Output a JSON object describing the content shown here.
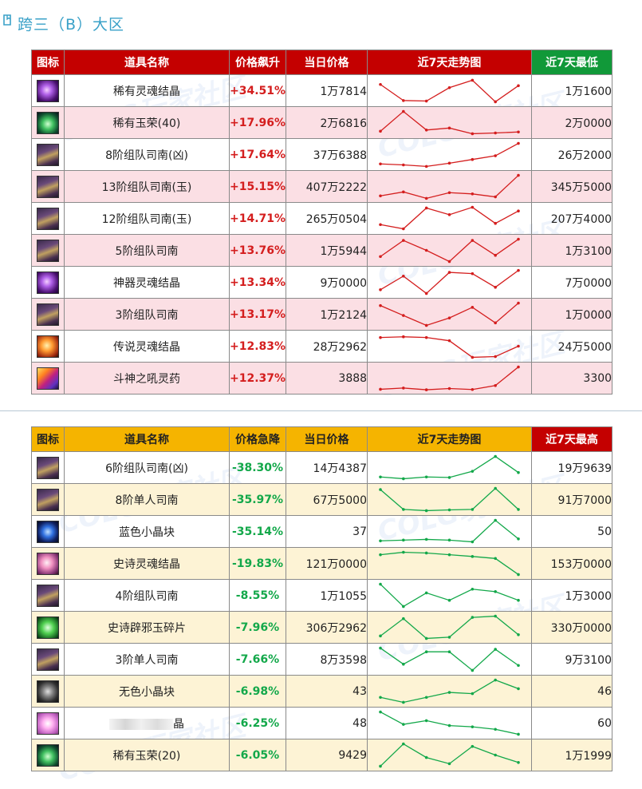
{
  "page_title": "跨三（B）大区",
  "watermark": "COLG玩家社区",
  "colors": {
    "rise_header": "#c40000",
    "rise_value": "#d41e1e",
    "fall_header": "#f5b400",
    "fall_value": "#13a84a",
    "low_header": "#119939",
    "high_header": "#c40000"
  },
  "rise_table": {
    "headers": {
      "icon": "图标",
      "name": "道具名称",
      "change": "价格飙升",
      "price": "当日价格",
      "trend": "近7天走势图",
      "extreme": "近7天最低"
    },
    "rows": [
      {
        "icon": "purple-orb-icon",
        "name": "稀有灵魂结晶",
        "change": "+34.51%",
        "price": "1万7814",
        "extreme": "1万1600",
        "trend": [
          0.75,
          0.1,
          0.08,
          0.62,
          0.92,
          0.05,
          0.7
        ]
      },
      {
        "icon": "green-gem-icon",
        "name": "稀有玉荣(40)",
        "change": "+17.96%",
        "price": "2万6816",
        "extreme": "2万0000",
        "trend": [
          0.15,
          0.95,
          0.2,
          0.28,
          0.05,
          0.08,
          0.12
        ]
      },
      {
        "icon": "scroll-compass-icon",
        "name": "8阶组队司南(凶)",
        "change": "+17.64%",
        "price": "37万6388",
        "extreme": "26万2000",
        "trend": [
          0.12,
          0.08,
          0.02,
          0.15,
          0.3,
          0.45,
          0.95
        ]
      },
      {
        "icon": "scroll-compass-icon",
        "name": "13阶组队司南(玉)",
        "change": "+15.15%",
        "price": "407万2222",
        "extreme": "345万5000",
        "trend": [
          0.12,
          0.28,
          0.02,
          0.25,
          0.2,
          0.08,
          0.95
        ]
      },
      {
        "icon": "scroll-compass-icon",
        "name": "12阶组队司南(玉)",
        "change": "+14.71%",
        "price": "265万0504",
        "extreme": "207万4000",
        "trend": [
          0.25,
          0.08,
          0.92,
          0.65,
          0.95,
          0.3,
          0.8
        ]
      },
      {
        "icon": "scroll-compass-icon",
        "name": "5阶组队司南",
        "change": "+13.76%",
        "price": "1万5944",
        "extreme": "1万3100",
        "trend": [
          0.25,
          0.9,
          0.5,
          0.05,
          0.9,
          0.3,
          0.95
        ]
      },
      {
        "icon": "purple-orb-icon",
        "name": "神器灵魂结晶",
        "change": "+13.34%",
        "price": "9万0000",
        "extreme": "7万0000",
        "trend": [
          0.2,
          0.75,
          0.05,
          0.9,
          0.85,
          0.3,
          0.98
        ]
      },
      {
        "icon": "scroll-compass-icon",
        "name": "3阶组队司南",
        "change": "+13.17%",
        "price": "1万2124",
        "extreme": "1万0000",
        "trend": [
          0.85,
          0.45,
          0.05,
          0.35,
          0.78,
          0.15,
          0.95
        ]
      },
      {
        "icon": "orange-orb-icon",
        "name": "传说灵魂结晶",
        "change": "+12.83%",
        "price": "28万2962",
        "extreme": "24万5000",
        "trend": [
          0.85,
          0.88,
          0.85,
          0.72,
          0.05,
          0.08,
          0.5
        ]
      },
      {
        "icon": "potion-icon",
        "name": "斗神之吼灵药",
        "change": "+12.37%",
        "price": "3888",
        "extreme": "3300",
        "trend": [
          0.05,
          0.1,
          0.03,
          0.08,
          0.04,
          0.2,
          0.95
        ]
      }
    ]
  },
  "fall_table": {
    "headers": {
      "icon": "图标",
      "name": "道具名称",
      "change": "价格急降",
      "price": "当日价格",
      "trend": "近7天走势图",
      "extreme": "近7天最高"
    },
    "rows": [
      {
        "icon": "scroll-compass-icon",
        "name": "6阶组队司南(凶)",
        "change": "-38.30%",
        "price": "14万4387",
        "extreme": "19万9639",
        "trend": [
          0.12,
          0.05,
          0.12,
          0.1,
          0.35,
          0.95,
          0.3
        ]
      },
      {
        "icon": "scroll-compass-icon",
        "name": "8阶单人司南",
        "change": "-35.97%",
        "price": "67万5000",
        "extreme": "91万7000",
        "trend": [
          0.9,
          0.1,
          0.05,
          0.08,
          0.1,
          0.95,
          0.1
        ]
      },
      {
        "icon": "blue-cube-icon",
        "name": "蓝色小晶块",
        "change": "-35.14%",
        "price": "37",
        "extreme": "50",
        "trend": [
          0.12,
          0.15,
          0.18,
          0.15,
          0.08,
          0.95,
          0.2
        ]
      },
      {
        "icon": "pink-orb-icon",
        "name": "史诗灵魂结晶",
        "change": "-19.83%",
        "price": "121万0000",
        "extreme": "153万0000",
        "trend": [
          0.85,
          0.95,
          0.92,
          0.85,
          0.78,
          0.7,
          0.05
        ]
      },
      {
        "icon": "scroll-compass-icon",
        "name": "4阶组队司南",
        "change": "-8.55%",
        "price": "1万1055",
        "extreme": "1万3000",
        "trend": [
          0.95,
          0.05,
          0.6,
          0.3,
          0.75,
          0.65,
          0.3
        ]
      },
      {
        "icon": "green-jade-icon",
        "name": "史诗辟邪玉碎片",
        "change": "-7.96%",
        "price": "306万2962",
        "extreme": "330万0000",
        "trend": [
          0.15,
          0.85,
          0.05,
          0.1,
          0.9,
          0.95,
          0.2
        ]
      },
      {
        "icon": "scroll-compass-icon",
        "name": "3阶单人司南",
        "change": "-7.66%",
        "price": "8万3598",
        "extreme": "9万3100",
        "trend": [
          0.95,
          0.3,
          0.8,
          0.8,
          0.05,
          0.9,
          0.25
        ]
      },
      {
        "icon": "gray-cube-icon",
        "name": "无色小晶块",
        "change": "-6.98%",
        "price": "43",
        "extreme": "46",
        "trend": [
          0.25,
          0.05,
          0.25,
          0.45,
          0.4,
          0.95,
          0.6
        ]
      },
      {
        "icon": "pink-crystal-icon",
        "name": "晶",
        "change": "-6.25%",
        "price": "48",
        "extreme": "60",
        "trend": [
          0.95,
          0.45,
          0.6,
          0.4,
          0.35,
          0.25,
          0.05
        ]
      },
      {
        "icon": "green-gem-icon",
        "name": "稀有玉荣(20)",
        "change": "-6.05%",
        "price": "9429",
        "extreme": "1万1999",
        "trend": [
          0.05,
          0.95,
          0.4,
          0.15,
          0.85,
          0.5,
          0.2
        ]
      }
    ]
  }
}
